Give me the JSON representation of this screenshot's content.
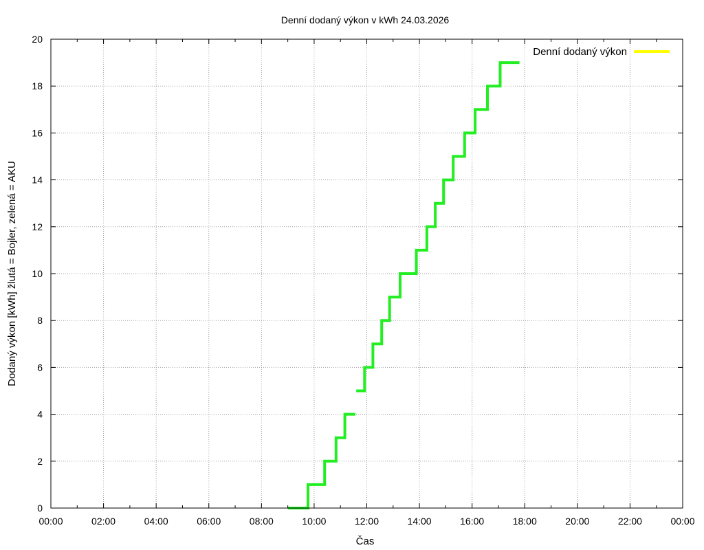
{
  "chart_data": {
    "type": "line",
    "title": "Denní dodaný výkon v kWh 24.03.2026",
    "xlabel": "Čas",
    "ylabel": "Dodaný výkon [kWh]  žlutá = Bojler, zelená = AKU",
    "xlim_hours": [
      0,
      24
    ],
    "ylim": [
      0,
      20
    ],
    "x_ticks": [
      "00:00",
      "02:00",
      "04:00",
      "06:00",
      "08:00",
      "10:00",
      "12:00",
      "14:00",
      "16:00",
      "18:00",
      "20:00",
      "22:00",
      "00:00"
    ],
    "y_ticks": [
      "0",
      "2",
      "4",
      "6",
      "8",
      "10",
      "12",
      "14",
      "16",
      "18",
      "20"
    ],
    "grid": true,
    "legend_position": "top-right",
    "series": [
      {
        "name": "Denní dodaný výkon",
        "color": "#ffff00",
        "points": []
      },
      {
        "color": "#22ee22",
        "segments": [
          [
            [
              "09:00",
              0
            ],
            [
              "09:06",
              0
            ],
            [
              "09:15",
              0
            ],
            [
              "09:46",
              0
            ],
            [
              "09:46",
              1
            ],
            [
              "10:24",
              1
            ],
            [
              "10:24",
              2
            ],
            [
              "10:50",
              2
            ],
            [
              "10:50",
              3
            ],
            [
              "11:10",
              3
            ],
            [
              "11:10",
              4
            ],
            [
              "11:34",
              4
            ]
          ],
          [
            [
              "11:36",
              5
            ],
            [
              "11:55",
              5
            ],
            [
              "11:55",
              6
            ],
            [
              "12:14",
              6
            ],
            [
              "12:14",
              7
            ],
            [
              "12:34",
              7
            ],
            [
              "12:34",
              8
            ],
            [
              "12:52",
              8
            ],
            [
              "12:52",
              9
            ],
            [
              "13:16",
              9
            ],
            [
              "13:16",
              10
            ],
            [
              "13:53",
              10
            ],
            [
              "13:53",
              11
            ],
            [
              "14:17",
              11
            ],
            [
              "14:17",
              12
            ],
            [
              "14:36",
              12
            ],
            [
              "14:36",
              13
            ],
            [
              "14:55",
              13
            ],
            [
              "14:55",
              14
            ],
            [
              "15:17",
              14
            ],
            [
              "15:17",
              15
            ],
            [
              "15:43",
              15
            ],
            [
              "15:43",
              16
            ],
            [
              "16:07",
              16
            ],
            [
              "16:07",
              17
            ],
            [
              "16:35",
              17
            ],
            [
              "16:35",
              18
            ],
            [
              "17:04",
              18
            ],
            [
              "17:04",
              19
            ],
            [
              "17:48",
              19
            ]
          ]
        ]
      }
    ]
  }
}
